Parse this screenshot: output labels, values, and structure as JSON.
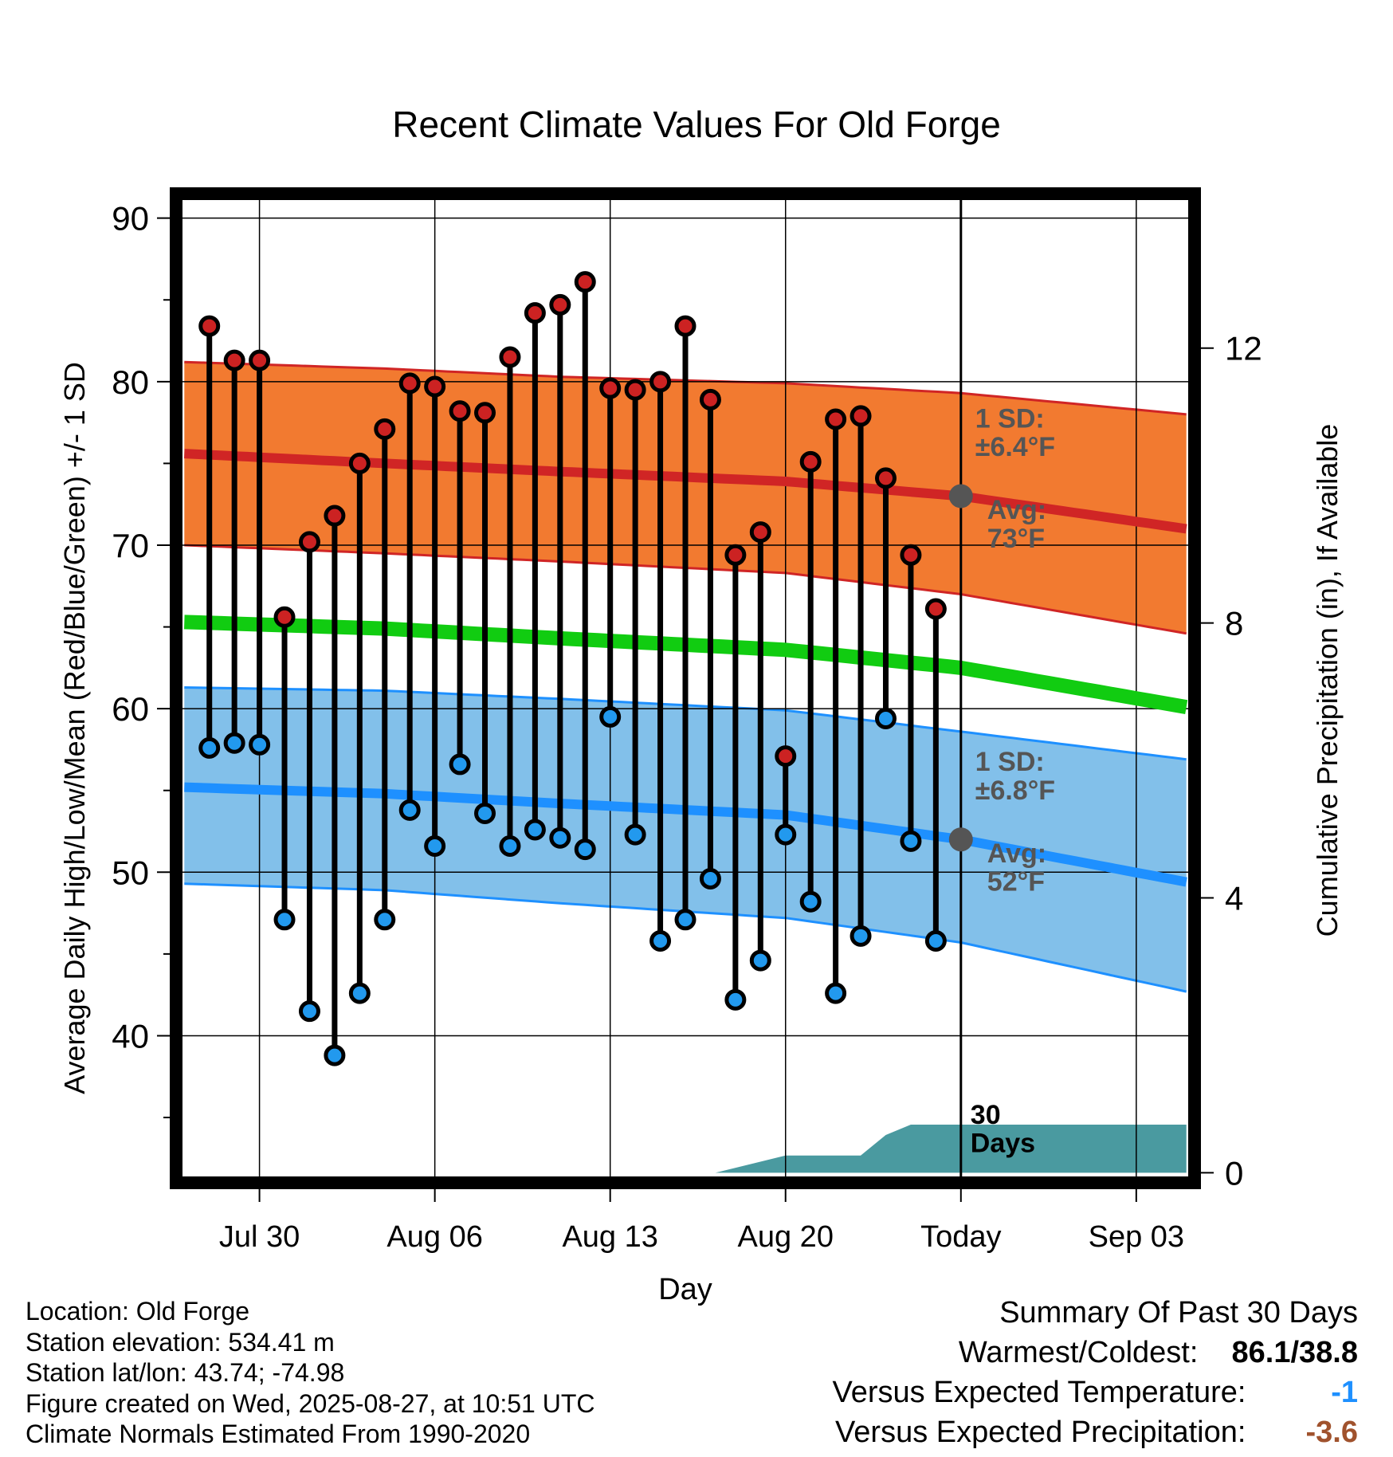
{
  "chart_data": {
    "type": "line",
    "title": "Recent Climate Values For Old Forge",
    "xlabel": "Day",
    "ylabel": "Average Daily High/Low/Mean (Red/Blue/Green) +/- 1 SD",
    "y2label": "Cumulative Precipitation (in), If Available",
    "xlim": [
      -3.2,
      37.2
    ],
    "ylim": [
      31.2,
      91.3
    ],
    "y2lim": [
      -0.1,
      14.2
    ],
    "x_ticks": [
      0,
      7,
      14,
      21,
      28,
      35
    ],
    "x_tick_labels": [
      "Jul 30",
      "Aug 06",
      "Aug 13",
      "Aug 20",
      "Today",
      "Sep 03"
    ],
    "y_ticks": [
      40,
      50,
      60,
      70,
      80,
      90
    ],
    "y2_ticks": [
      0,
      4,
      8,
      12
    ],
    "today_x": 28,
    "today_label": "30\nDays",
    "days": [
      -2,
      -1,
      0,
      1,
      2,
      3,
      4,
      5,
      6,
      7,
      8,
      9,
      10,
      11,
      12,
      13,
      14,
      15,
      16,
      17,
      18,
      19,
      20,
      21,
      22,
      23,
      24,
      25,
      26,
      27
    ],
    "series": [
      {
        "name": "Daily High",
        "color": "#cc2222",
        "values": [
          83.4,
          81.3,
          81.3,
          65.6,
          70.2,
          71.8,
          75.0,
          77.1,
          79.9,
          79.7,
          78.2,
          78.1,
          81.5,
          84.2,
          84.7,
          86.1,
          79.6,
          79.5,
          80.0,
          83.4,
          78.9,
          69.4,
          70.8,
          57.1,
          75.1,
          77.7,
          77.9,
          74.1,
          69.4,
          66.1
        ]
      },
      {
        "name": "Daily Low",
        "color": "#2299ee",
        "values": [
          57.6,
          57.9,
          57.8,
          47.1,
          41.5,
          38.8,
          42.6,
          47.1,
          53.8,
          51.6,
          56.6,
          53.6,
          51.6,
          52.6,
          52.1,
          51.4,
          59.5,
          52.3,
          45.8,
          47.1,
          49.6,
          42.2,
          44.6,
          52.3,
          48.2,
          42.6,
          46.1,
          59.4,
          51.9,
          45.8
        ]
      }
    ],
    "normals": {
      "high_avg": {
        "x": [
          -3,
          5,
          12,
          21,
          28,
          37
        ],
        "values": [
          75.6,
          75.0,
          74.5,
          73.9,
          73.0,
          71.0
        ]
      },
      "high_upper": {
        "x": [
          -3,
          5,
          12,
          21,
          28,
          37
        ],
        "values": [
          81.2,
          80.8,
          80.3,
          79.9,
          79.3,
          78.0
        ]
      },
      "high_lower": {
        "x": [
          -3,
          5,
          12,
          21,
          28,
          37
        ],
        "values": [
          70.0,
          69.5,
          69.0,
          68.3,
          67.0,
          64.6
        ]
      },
      "mean": {
        "x": [
          -3,
          5,
          12,
          21,
          28,
          37
        ],
        "values": [
          65.3,
          64.9,
          64.3,
          63.6,
          62.5,
          60.1
        ]
      },
      "low_avg": {
        "x": [
          -3,
          5,
          12,
          21,
          28,
          37
        ],
        "values": [
          55.2,
          54.8,
          54.2,
          53.5,
          52.0,
          49.4
        ]
      },
      "low_upper": {
        "x": [
          -3,
          5,
          12,
          21,
          28,
          37
        ],
        "values": [
          61.3,
          61.1,
          60.6,
          59.9,
          58.6,
          56.9
        ]
      },
      "low_lower": {
        "x": [
          -3,
          5,
          12,
          21,
          28,
          37
        ],
        "values": [
          49.3,
          48.9,
          48.1,
          47.2,
          45.7,
          42.7
        ]
      }
    },
    "precip_cumulative": {
      "x": [
        18.2,
        21,
        24,
        25,
        26,
        37
      ],
      "values": [
        0,
        0.25,
        0.25,
        0.55,
        0.7,
        0.7
      ]
    },
    "annotations": {
      "high_sd": "1 SD:\n±6.4°F",
      "high_avg": "Avg:\n73°F",
      "low_sd": "1 SD:\n±6.8°F",
      "low_avg": "Avg:\n52°F"
    },
    "colors": {
      "high_band": "#f27a30",
      "high_line": "#d02525",
      "mean_line": "#11cc11",
      "low_band": "#82c0ea",
      "low_line": "#1e90ff",
      "precip": "#4a9aa0",
      "marker_high": "#cc2222",
      "marker_low": "#2299ee",
      "avg_dot": "#555555",
      "annotation": "#555555"
    },
    "grid": true
  },
  "footer": {
    "location": "Location: Old Forge",
    "elevation": "Station elevation: 534.41 m",
    "latlon": "Station lat/lon: 43.74; -74.98",
    "created": "Figure created on Wed, 2025-08-27, at 10:51 UTC",
    "normals": "Climate Normals Estimated From 1990-2020"
  },
  "summary": {
    "title": "Summary Of Past 30 Days",
    "warm_cold_label": "Warmest/Coldest:",
    "warm_cold_value": "86.1/38.8",
    "temp_label": "Versus Expected Temperature:",
    "temp_value": "-1",
    "temp_color": "#1e90ff",
    "precip_label": "Versus Expected Precipitation:",
    "precip_value": "-3.6",
    "precip_color": "#a0522d"
  }
}
